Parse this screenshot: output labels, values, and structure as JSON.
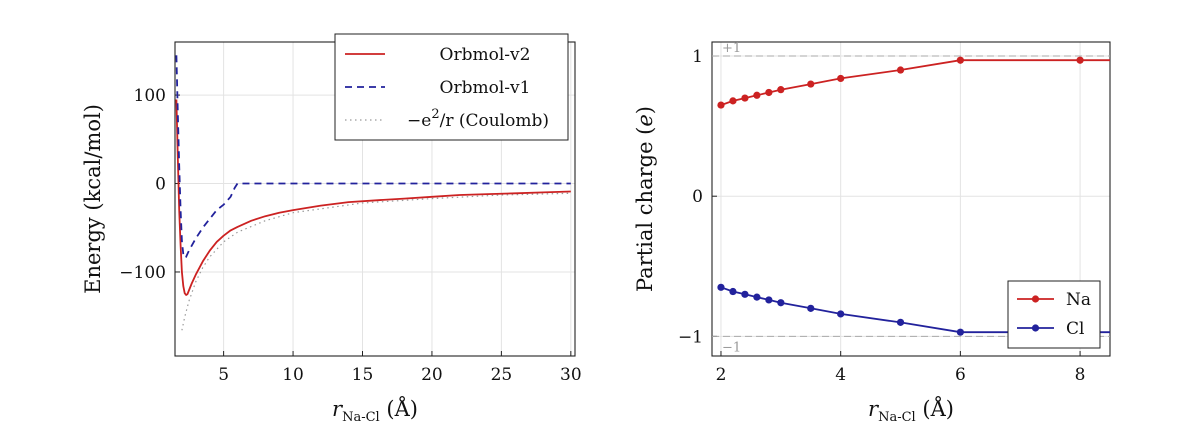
{
  "chart_data": [
    {
      "type": "line",
      "xlabel_main": "r",
      "xlabel_sub": "Na-Cl",
      "xlabel_unit": " (Å)",
      "ylabel": "Energy (kcal/mol)",
      "xlim": [
        1.5,
        30.3
      ],
      "ylim": [
        -195,
        160
      ],
      "xticks": [
        5,
        10,
        15,
        20,
        25,
        30
      ],
      "yticks": [
        -100,
        0,
        100
      ],
      "grid": true,
      "legend_position": "top-right",
      "series": [
        {
          "name": "Orbmol-v2",
          "color": "#cc2222",
          "dash": "solid",
          "x": [
            1.6,
            1.7,
            1.8,
            1.9,
            2.0,
            2.1,
            2.2,
            2.3,
            2.4,
            2.5,
            2.7,
            3.0,
            3.5,
            4.0,
            4.5,
            5.0,
            5.5,
            6.0,
            7,
            8,
            9,
            10,
            12,
            14,
            16,
            18,
            20,
            22,
            24,
            26,
            28,
            30
          ],
          "y": [
            95,
            30,
            -30,
            -70,
            -100,
            -116,
            -124,
            -126,
            -125,
            -121,
            -113,
            -103,
            -88,
            -76,
            -66,
            -59,
            -53,
            -49,
            -42,
            -37,
            -33,
            -30,
            -25,
            -21,
            -19,
            -17,
            -15,
            -13,
            -12,
            -11,
            -10,
            -9
          ]
        },
        {
          "name": "Orbmol-v1",
          "color": "#22229c",
          "dash": "dashed",
          "x": [
            1.6,
            1.7,
            1.8,
            1.9,
            2.0,
            2.1,
            2.2,
            2.3,
            2.5,
            3.0,
            3.5,
            4.0,
            4.5,
            5.0,
            5.5,
            5.8,
            6.0,
            8,
            10,
            15,
            20,
            25,
            30
          ],
          "y": [
            145,
            80,
            20,
            -30,
            -65,
            -80,
            -84,
            -83,
            -76,
            -62,
            -50,
            -40,
            -30,
            -24,
            -15,
            -5,
            0,
            0,
            0,
            0,
            0,
            0,
            0
          ]
        },
        {
          "name_pre": "−e",
          "name_sup": "2",
          "name_post": "/r (Coulomb)",
          "color": "#999999",
          "dash": "dotted",
          "x": [
            2.0,
            2.2,
            2.5,
            3.0,
            3.5,
            4.0,
            5.0,
            6.0,
            8,
            10,
            15,
            20,
            25,
            30
          ],
          "y": [
            -166,
            -151,
            -133,
            -111,
            -95,
            -83,
            -66,
            -55,
            -42,
            -33,
            -22,
            -17,
            -13,
            -11
          ]
        }
      ]
    },
    {
      "type": "line",
      "xlabel_main": "r",
      "xlabel_sub": "Na-Cl",
      "xlabel_unit": " (Å)",
      "ylabel_pre": "Partial charge (",
      "ylabel_var": "e",
      "ylabel_post": ")",
      "xlim": [
        1.85,
        8.5
      ],
      "ylim": [
        -1.14,
        1.1
      ],
      "xticks": [
        2,
        4,
        6,
        8
      ],
      "yticks": [
        -1,
        0,
        1
      ],
      "grid": true,
      "legend_position": "bottom-right",
      "reference_lines": [
        {
          "y": 1,
          "label": "+1"
        },
        {
          "y": -1,
          "label": "−1"
        }
      ],
      "series": [
        {
          "name": "Na",
          "color": "#cc2222",
          "x": [
            2.0,
            2.2,
            2.4,
            2.6,
            2.8,
            3.0,
            3.5,
            4.0,
            5.0,
            6.0,
            8.0,
            8.5
          ],
          "y": [
            0.65,
            0.68,
            0.7,
            0.72,
            0.74,
            0.76,
            0.8,
            0.84,
            0.9,
            0.97,
            0.97,
            0.97
          ],
          "markers": [
            true,
            true,
            true,
            true,
            true,
            true,
            true,
            true,
            true,
            true,
            true,
            false
          ]
        },
        {
          "name": "Cl",
          "color": "#22229c",
          "x": [
            2.0,
            2.2,
            2.4,
            2.6,
            2.8,
            3.0,
            3.5,
            4.0,
            5.0,
            6.0,
            8.5
          ],
          "y": [
            -0.65,
            -0.68,
            -0.7,
            -0.72,
            -0.74,
            -0.76,
            -0.8,
            -0.84,
            -0.9,
            -0.97,
            -0.97
          ],
          "markers": [
            true,
            true,
            true,
            true,
            true,
            true,
            true,
            true,
            true,
            true,
            false
          ]
        }
      ]
    }
  ]
}
